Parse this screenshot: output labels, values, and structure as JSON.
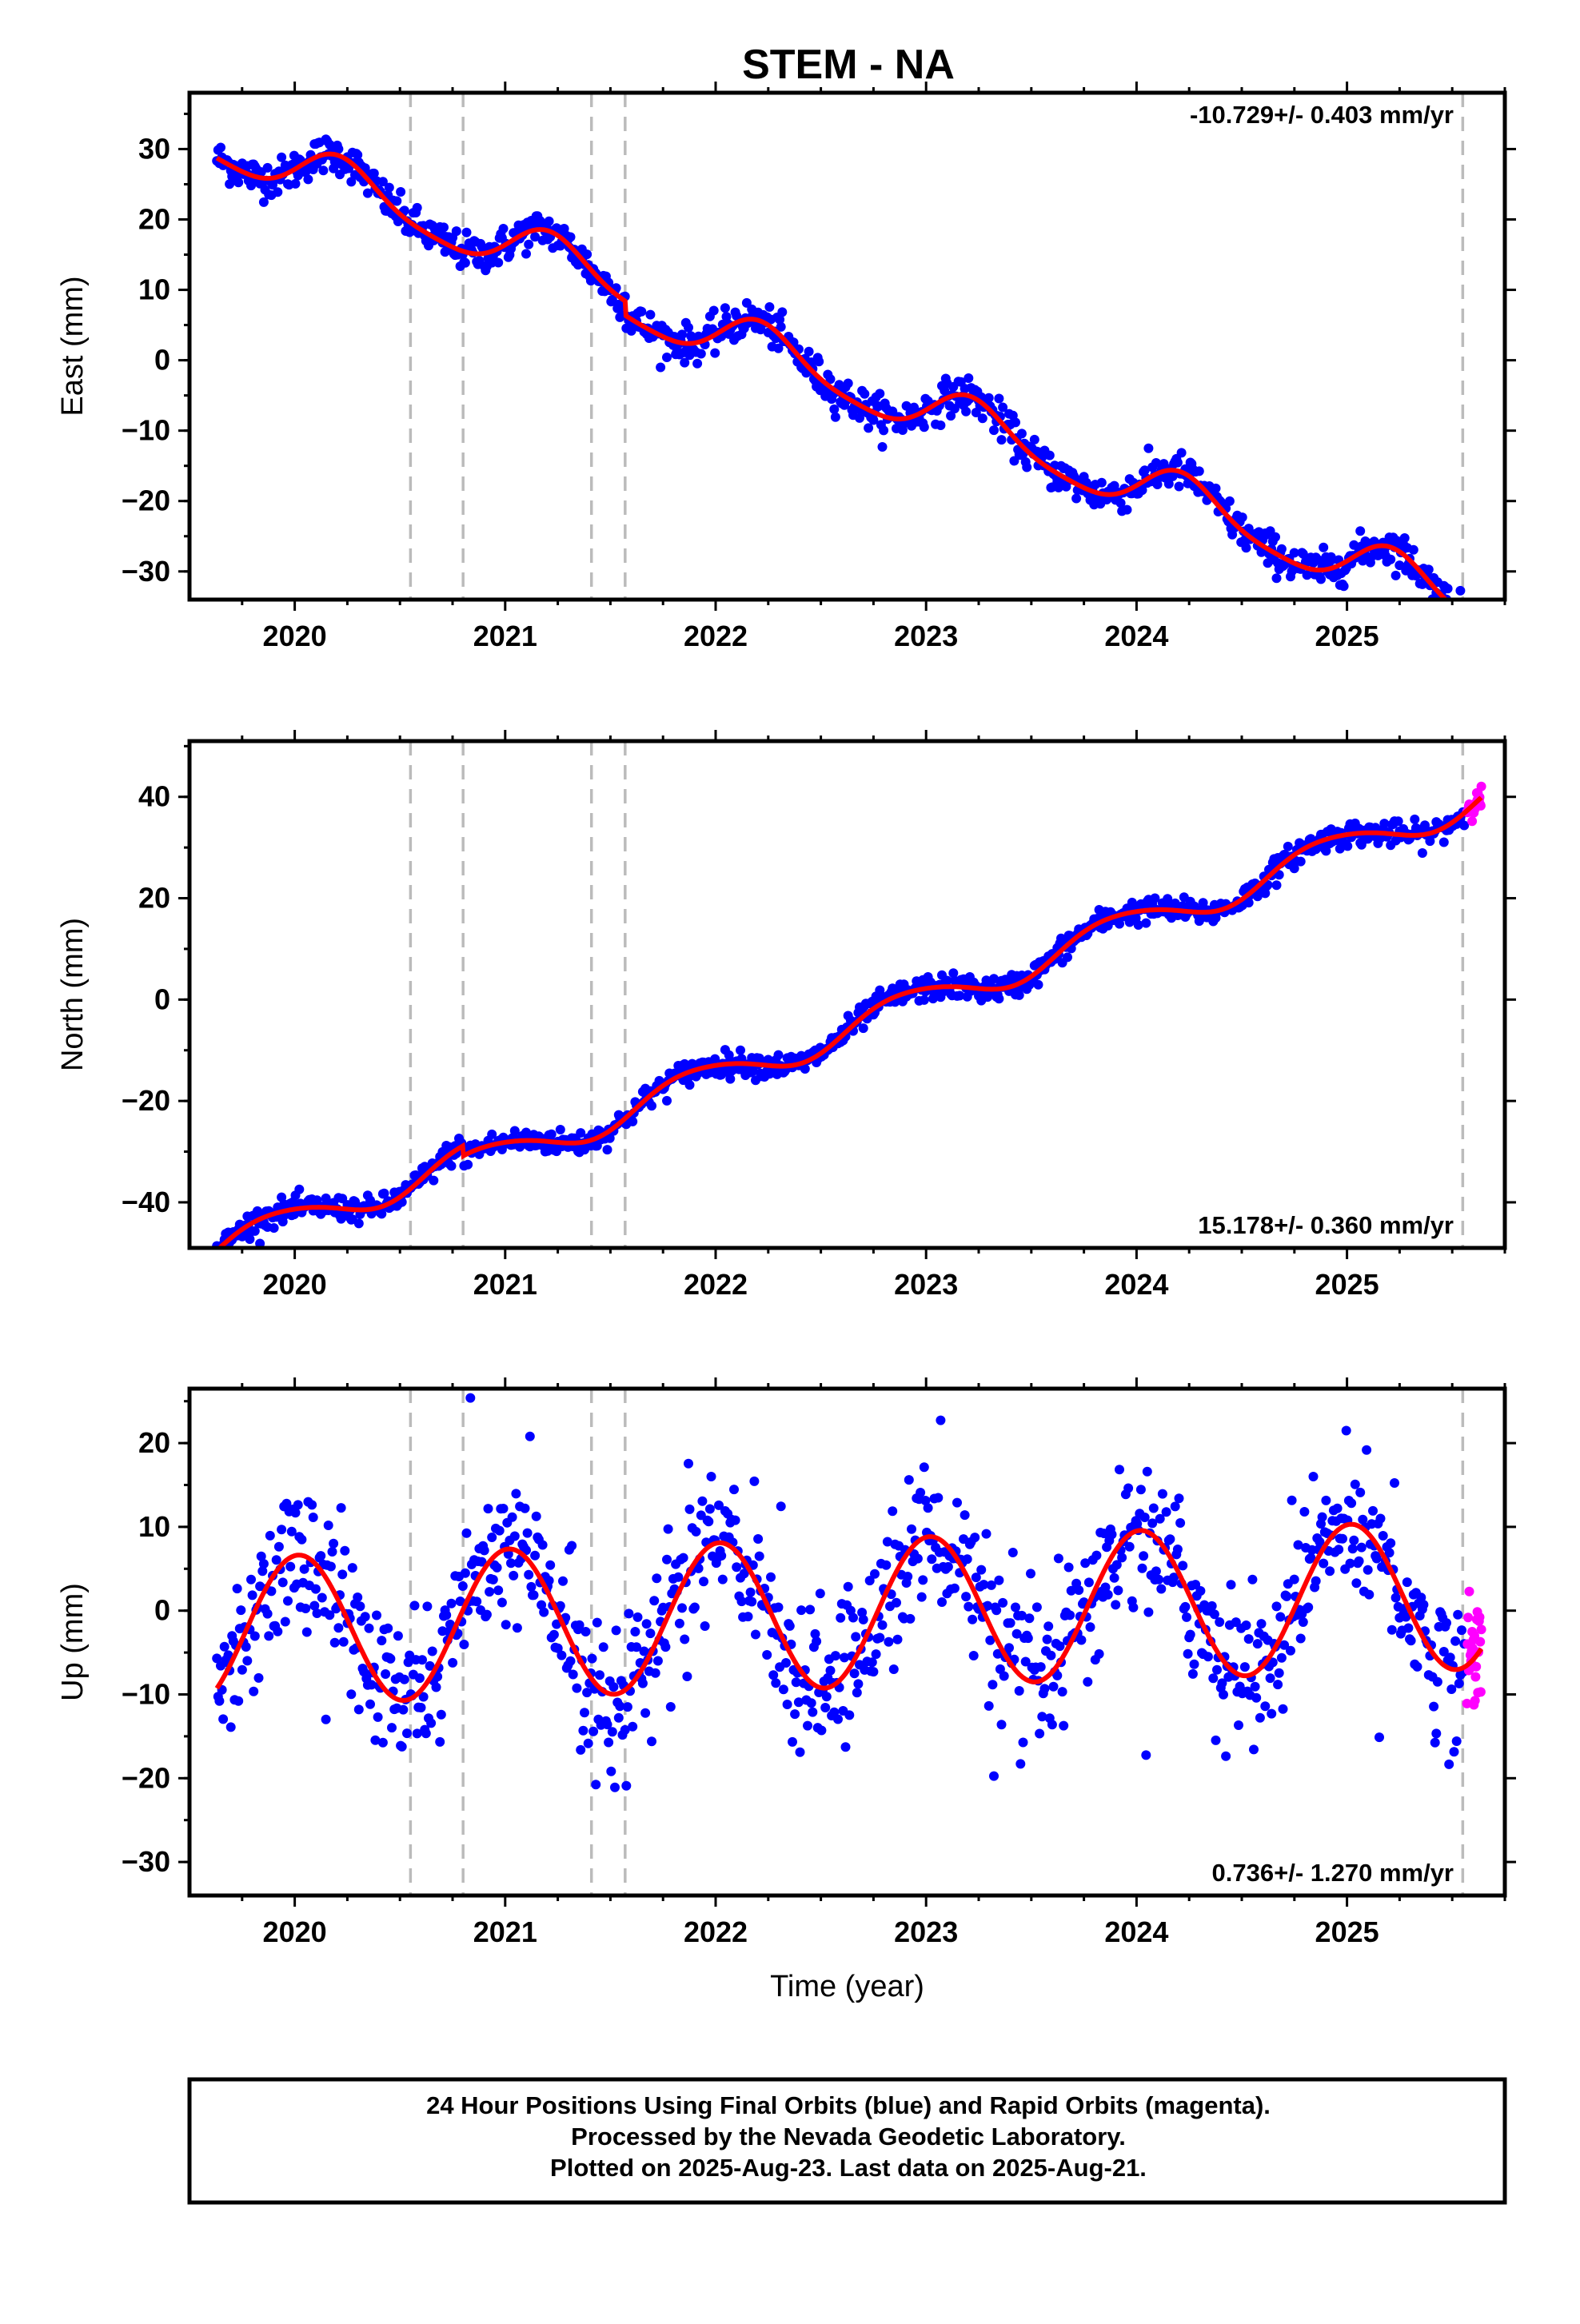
{
  "chart_data": [
    {
      "type": "scatter",
      "title": "STEM - NA",
      "ylabel": "East (mm)",
      "xlabel": "",
      "xlim": [
        2019.5,
        2025.75
      ],
      "ylim": [
        -34,
        38
      ],
      "yticks": [
        30,
        20,
        10,
        0,
        -10,
        -20,
        -30
      ],
      "ytick_labels": [
        "30",
        "20",
        "10",
        "0",
        "−10",
        "−20",
        "−30"
      ],
      "xticks": [
        2020,
        2021,
        2022,
        2023,
        2024,
        2025
      ],
      "xtick_labels": [
        "2020",
        "2021",
        "2022",
        "2023",
        "2024",
        "2025"
      ],
      "rate_label": "-10.729+/- 0.403 mm/yr",
      "rate_position": "top-right",
      "equipment_change_dates": [
        2020.55,
        2020.8,
        2021.41,
        2021.57,
        2025.55
      ],
      "colors": {
        "final": "#0000ff",
        "rapid": "#ff00ff",
        "model": "#ff0000",
        "dashes": "#bbbbbb"
      },
      "model": {
        "rate": -10.729,
        "offset": 0.3,
        "annual_sin": 3.5,
        "annual_cos": 0.5,
        "semi_sin": 0.5,
        "semi_cos": -0.5,
        "steps": [
          [
            2021.57,
            -2.0
          ]
        ]
      },
      "scatter_noise": 1.3,
      "series": [
        {
          "name": "Final Orbits",
          "x_range": [
            2019.63,
            2025.56
          ]
        },
        {
          "name": "Rapid Orbits",
          "x_range": [
            2025.57,
            2025.64
          ]
        },
        {
          "name": "Model",
          "x_range": [
            2019.63,
            2025.64
          ]
        }
      ]
    },
    {
      "type": "scatter",
      "title": "",
      "ylabel": "North (mm)",
      "xlabel": "",
      "xlim": [
        2019.5,
        2025.75
      ],
      "ylim": [
        -49,
        51
      ],
      "yticks": [
        40,
        20,
        0,
        -20,
        -40
      ],
      "ytick_labels": [
        "40",
        "20",
        "0",
        "−20",
        "−40"
      ],
      "xticks": [
        2020,
        2021,
        2022,
        2023,
        2024,
        2025
      ],
      "xtick_labels": [
        "2020",
        "2021",
        "2022",
        "2023",
        "2024",
        "2025"
      ],
      "rate_label": "15.178+/- 0.360 mm/yr",
      "rate_position": "bottom-right",
      "equipment_change_dates": [
        2020.55,
        2020.8,
        2021.41,
        2021.57,
        2025.55
      ],
      "colors": {
        "final": "#0000ff",
        "rapid": "#ff00ff",
        "model": "#ff0000",
        "dashes": "#bbbbbb"
      },
      "model": {
        "rate": 15.178,
        "offset": -5.7,
        "annual_sin": -1.8,
        "annual_cos": 2.6,
        "semi_sin": 0.2,
        "semi_cos": -0.3,
        "steps": [
          [
            2020.8,
            -2.0
          ]
        ]
      },
      "scatter_noise": 1.2,
      "series": [
        {
          "name": "Final Orbits",
          "x_range": [
            2019.63,
            2025.56
          ]
        },
        {
          "name": "Rapid Orbits",
          "x_range": [
            2025.57,
            2025.64
          ]
        },
        {
          "name": "Model",
          "x_range": [
            2019.63,
            2025.64
          ]
        }
      ]
    },
    {
      "type": "scatter",
      "title": "",
      "ylabel": "Up (mm)",
      "xlabel": "Time (year)",
      "xlim": [
        2019.5,
        2025.75
      ],
      "ylim": [
        -34,
        26.5
      ],
      "yticks": [
        20,
        10,
        0,
        -10,
        -20,
        -30
      ],
      "ytick_labels": [
        "20",
        "10",
        "0",
        "−10",
        "−20",
        "−30"
      ],
      "xticks": [
        2020,
        2021,
        2022,
        2023,
        2024,
        2025
      ],
      "xtick_labels": [
        "2020",
        "2021",
        "2022",
        "2023",
        "2024",
        "2025"
      ],
      "rate_label": "0.736+/- 1.270 mm/yr",
      "rate_position": "bottom-right",
      "equipment_change_dates": [
        2020.55,
        2020.8,
        2021.41,
        2021.57,
        2025.55
      ],
      "colors": {
        "final": "#0000ff",
        "rapid": "#ff00ff",
        "model": "#ff0000",
        "dashes": "#bbbbbb"
      },
      "model": {
        "rate": 0.736,
        "offset": -0.4,
        "annual_sin": 1.0,
        "annual_cos": 8.8,
        "semi_sin": 0.0,
        "semi_cos": 0.0,
        "steps": []
      },
      "scatter_noise": 4.5,
      "series": [
        {
          "name": "Final Orbits",
          "x_range": [
            2019.63,
            2025.56
          ]
        },
        {
          "name": "Rapid Orbits",
          "x_range": [
            2025.57,
            2025.64
          ]
        },
        {
          "name": "Model",
          "x_range": [
            2019.63,
            2025.64
          ]
        }
      ]
    }
  ],
  "footer": {
    "line1": "24 Hour Positions Using Final Orbits (blue) and Rapid Orbits (magenta).",
    "line2": "Processed by the Nevada Geodetic Laboratory.",
    "line3": "Plotted on 2025-Aug-23. Last data on 2025-Aug-21."
  }
}
